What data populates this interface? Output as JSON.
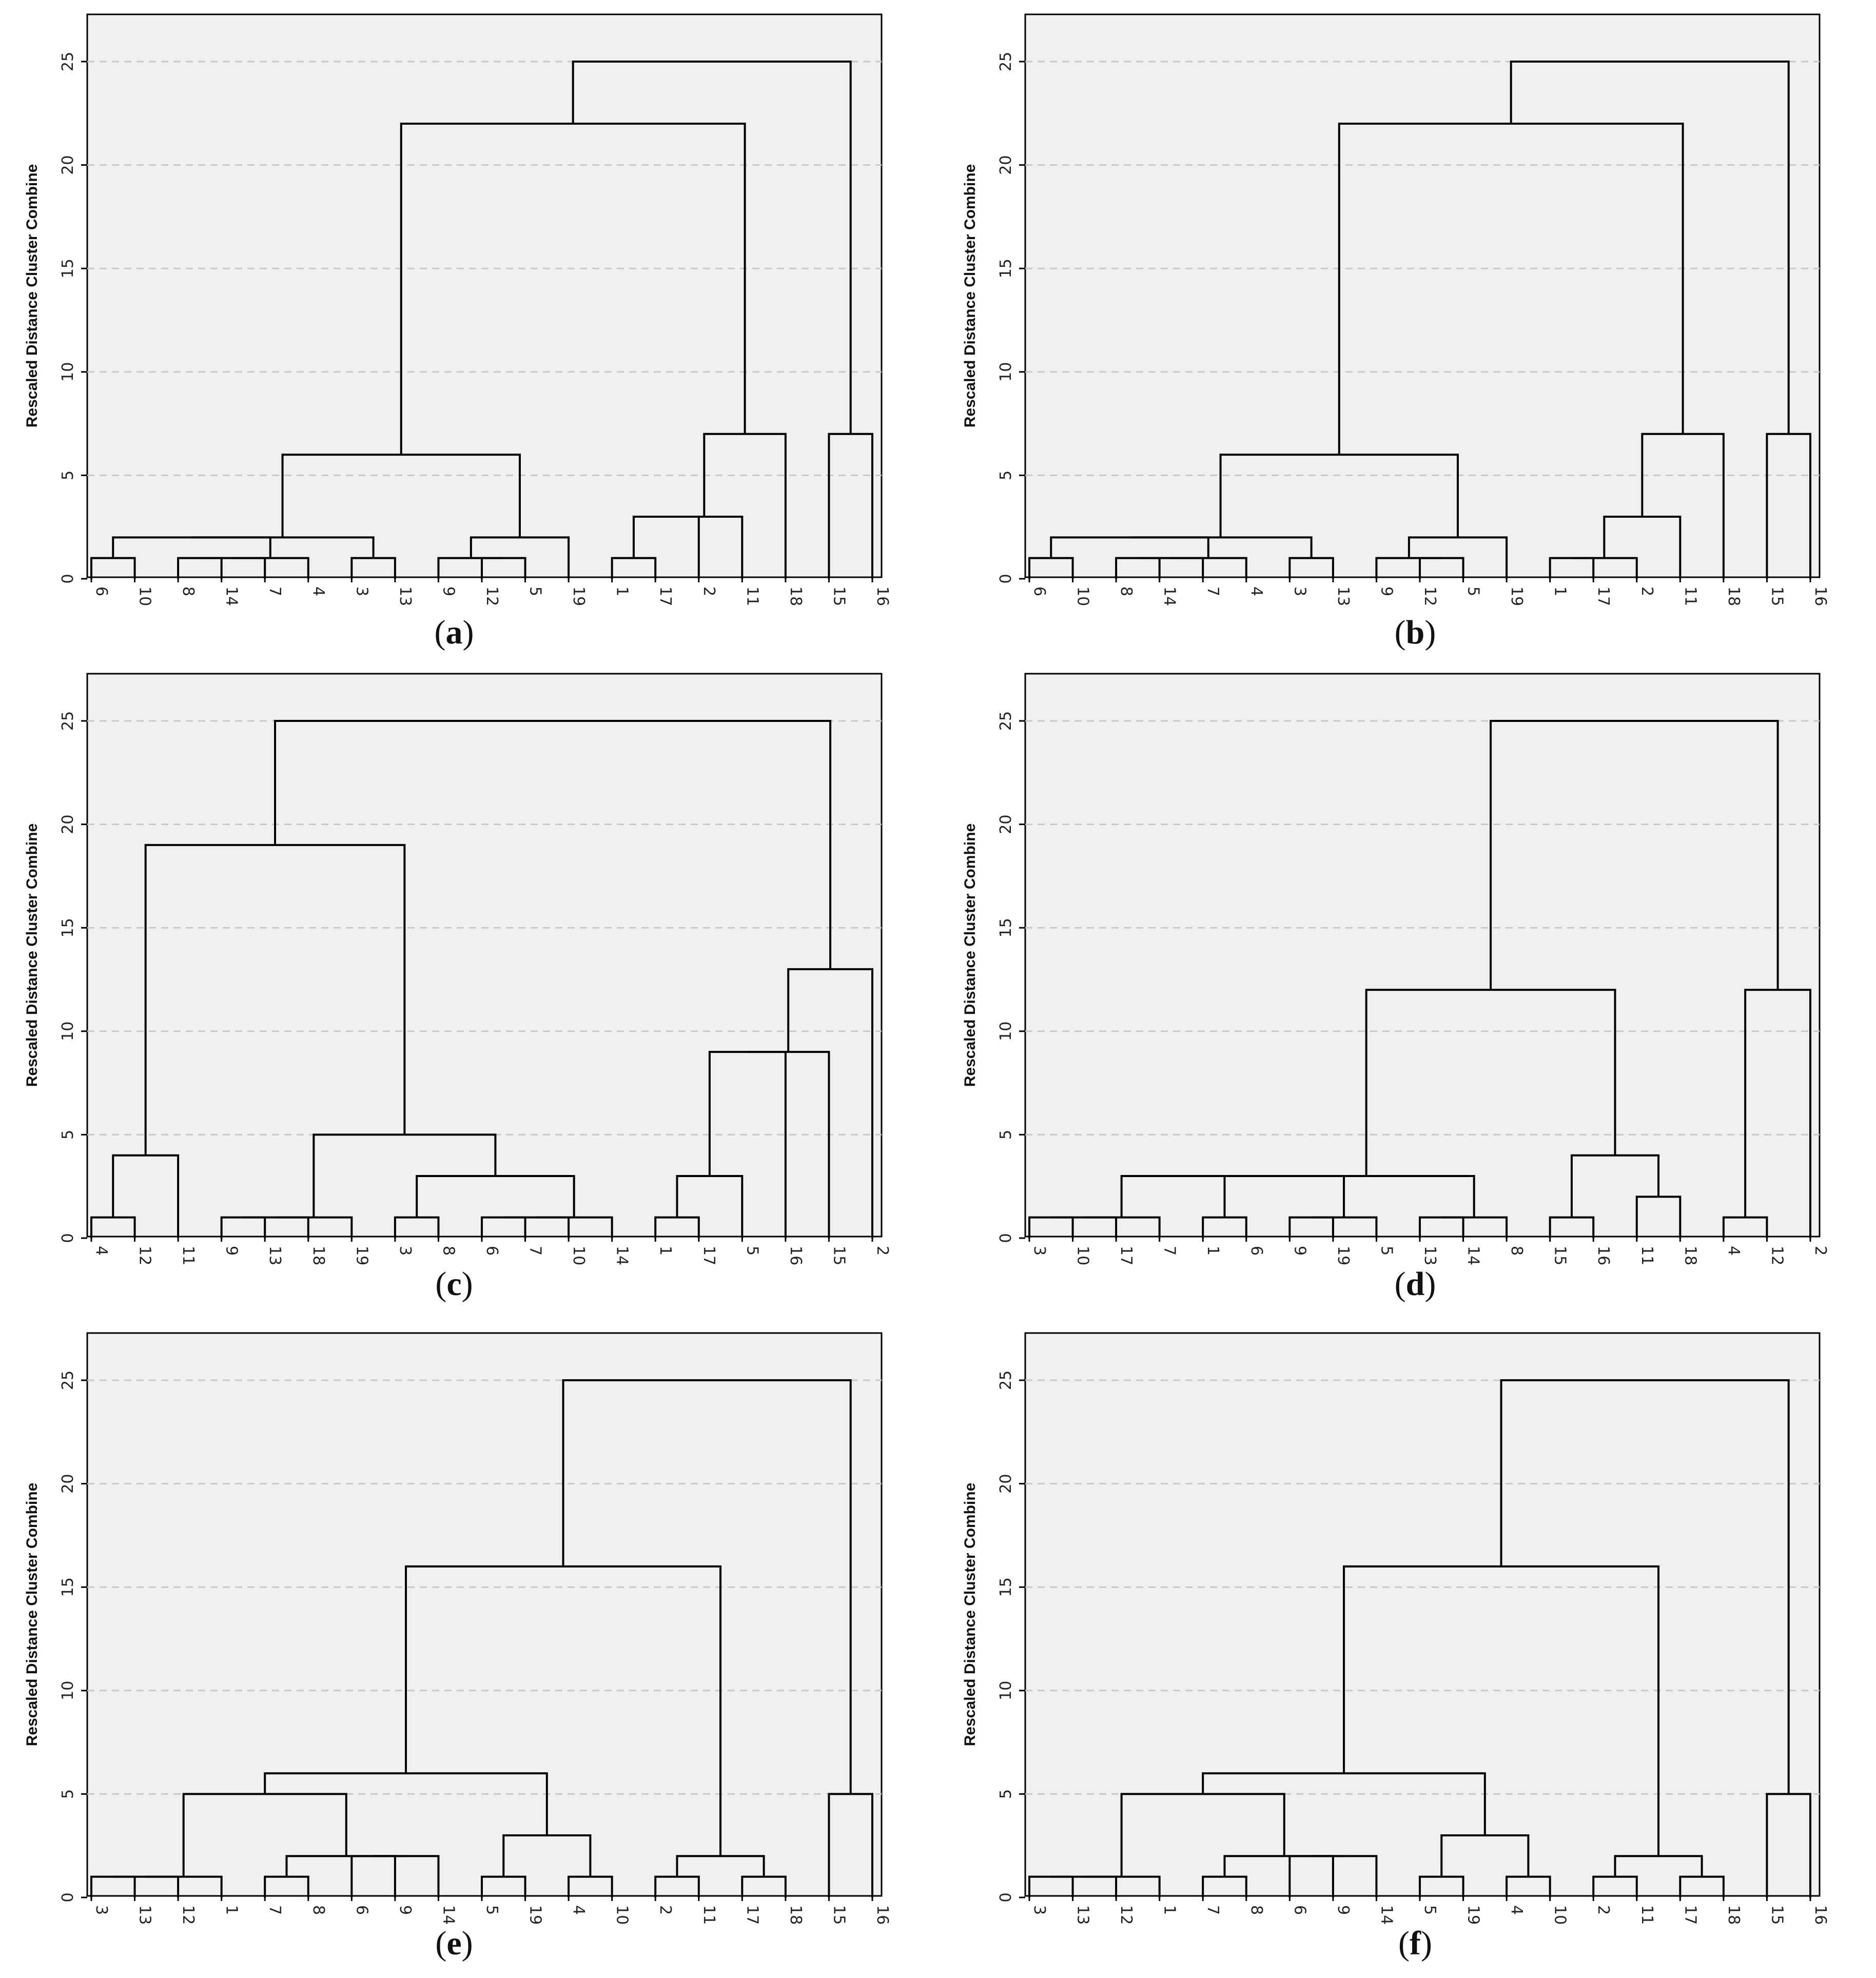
{
  "chart_data": [
    {
      "panel": "a",
      "type": "dendrogram",
      "ylabel": "Rescaled Distance Cluster Combine",
      "yticks": [
        0,
        5,
        10,
        15,
        20,
        25
      ],
      "ylim": [
        0,
        25
      ],
      "grid": "horizontal dashed",
      "leaves": [
        "6",
        "10",
        "8",
        "14",
        "7",
        "4",
        "3",
        "13",
        "9",
        "12",
        "5",
        "19",
        "1",
        "17",
        "2",
        "11",
        "18",
        "15",
        "16"
      ],
      "merges": [
        {
          "a": "L0",
          "b": "L1",
          "h": 1
        },
        {
          "a": "L2",
          "b": "L3",
          "h": 1
        },
        {
          "a": "n1",
          "b": "L4",
          "h": 1
        },
        {
          "a": "n2",
          "b": "L5",
          "h": 1
        },
        {
          "a": "L6",
          "b": "L7",
          "h": 1
        },
        {
          "a": "n0",
          "b": "n3",
          "h": 2
        },
        {
          "a": "n5",
          "b": "n4",
          "h": 2
        },
        {
          "a": "L9",
          "b": "L10",
          "h": 1
        },
        {
          "a": "L8",
          "b": "n7",
          "h": 1
        },
        {
          "a": "n8",
          "b": "L11",
          "h": 2
        },
        {
          "a": "n6",
          "b": "n9",
          "h": 6
        },
        {
          "a": "L12",
          "b": "L13",
          "h": 1
        },
        {
          "a": "n11",
          "b": "L14",
          "h": 3
        },
        {
          "a": "n12",
          "b": "L15",
          "h": 3
        },
        {
          "a": "n13",
          "b": "L16",
          "h": 7
        },
        {
          "a": "n10",
          "b": "n14",
          "h": 22
        },
        {
          "a": "L17",
          "b": "L18",
          "h": 7
        },
        {
          "a": "n15",
          "b": "n16",
          "h": 25
        }
      ]
    },
    {
      "panel": "b",
      "type": "dendrogram",
      "ylabel": "Rescaled Distance Cluster Combine",
      "yticks": [
        0,
        5,
        10,
        15,
        20,
        25
      ],
      "ylim": [
        0,
        25
      ],
      "grid": "horizontal dashed",
      "leaves": [
        "6",
        "10",
        "8",
        "14",
        "7",
        "4",
        "3",
        "13",
        "9",
        "12",
        "5",
        "19",
        "1",
        "17",
        "2",
        "11",
        "18",
        "15",
        "16"
      ],
      "merges": [
        {
          "a": "L0",
          "b": "L1",
          "h": 1
        },
        {
          "a": "L2",
          "b": "L3",
          "h": 1
        },
        {
          "a": "n1",
          "b": "L4",
          "h": 1
        },
        {
          "a": "n2",
          "b": "L5",
          "h": 1
        },
        {
          "a": "n0",
          "b": "n3",
          "h": 2
        },
        {
          "a": "L6",
          "b": "L7",
          "h": 1
        },
        {
          "a": "n4",
          "b": "n5",
          "h": 2
        },
        {
          "a": "L9",
          "b": "L10",
          "h": 1
        },
        {
          "a": "L8",
          "b": "n7",
          "h": 1
        },
        {
          "a": "n8",
          "b": "L11",
          "h": 2
        },
        {
          "a": "n6",
          "b": "n9",
          "h": 6
        },
        {
          "a": "L12",
          "b": "L13",
          "h": 1
        },
        {
          "a": "n11",
          "b": "L14",
          "h": 1
        },
        {
          "a": "n12",
          "b": "L15",
          "h": 3
        },
        {
          "a": "n13",
          "b": "L16",
          "h": 7
        },
        {
          "a": "n10",
          "b": "n14",
          "h": 22
        },
        {
          "a": "L17",
          "b": "L18",
          "h": 7
        },
        {
          "a": "n15",
          "b": "n16",
          "h": 25
        }
      ]
    },
    {
      "panel": "c",
      "type": "dendrogram",
      "ylabel": "Rescaled Distance Cluster Combine",
      "yticks": [
        0,
        5,
        10,
        15,
        20,
        25
      ],
      "ylim": [
        0,
        25
      ],
      "grid": "horizontal dashed",
      "leaves": [
        "4",
        "12",
        "11",
        "9",
        "13",
        "18",
        "19",
        "3",
        "8",
        "6",
        "7",
        "10",
        "14",
        "1",
        "17",
        "5",
        "16",
        "15",
        "2"
      ],
      "merges": [
        {
          "a": "L0",
          "b": "L1",
          "h": 1
        },
        {
          "a": "n0",
          "b": "L2",
          "h": 4
        },
        {
          "a": "L3",
          "b": "L4",
          "h": 1
        },
        {
          "a": "n2",
          "b": "L5",
          "h": 1
        },
        {
          "a": "n3",
          "b": "L6",
          "h": 1
        },
        {
          "a": "L7",
          "b": "L8",
          "h": 1
        },
        {
          "a": "L9",
          "b": "L10",
          "h": 1
        },
        {
          "a": "n6",
          "b": "L11",
          "h": 1
        },
        {
          "a": "n7",
          "b": "L12",
          "h": 1
        },
        {
          "a": "n5",
          "b": "n8",
          "h": 3
        },
        {
          "a": "n4",
          "b": "n9",
          "h": 5
        },
        {
          "a": "n1",
          "b": "n10",
          "h": 19
        },
        {
          "a": "L13",
          "b": "L14",
          "h": 1
        },
        {
          "a": "n12",
          "b": "L15",
          "h": 3
        },
        {
          "a": "n13",
          "b": "L16",
          "h": 9
        },
        {
          "a": "n14",
          "b": "L17",
          "h": 9
        },
        {
          "a": "n15",
          "b": "L18",
          "h": 13
        },
        {
          "a": "n11",
          "b": "n16",
          "h": 25
        }
      ]
    },
    {
      "panel": "d",
      "type": "dendrogram",
      "ylabel": "Rescaled Distance Cluster Combine",
      "yticks": [
        0,
        5,
        10,
        15,
        20,
        25
      ],
      "ylim": [
        0,
        25
      ],
      "grid": "horizontal dashed",
      "leaves": [
        "3",
        "10",
        "17",
        "7",
        "1",
        "6",
        "9",
        "19",
        "5",
        "13",
        "14",
        "8",
        "15",
        "16",
        "11",
        "18",
        "4",
        "12",
        "2"
      ],
      "merges": [
        {
          "a": "L0",
          "b": "L1",
          "h": 1
        },
        {
          "a": "n0",
          "b": "L2",
          "h": 1
        },
        {
          "a": "n1",
          "b": "L3",
          "h": 1
        },
        {
          "a": "L4",
          "b": "L5",
          "h": 1
        },
        {
          "a": "L6",
          "b": "L7",
          "h": 1
        },
        {
          "a": "n4",
          "b": "L8",
          "h": 1
        },
        {
          "a": "L9",
          "b": "L10",
          "h": 1
        },
        {
          "a": "n6",
          "b": "L11",
          "h": 1
        },
        {
          "a": "n2",
          "b": "n3",
          "h": 3
        },
        {
          "a": "n8",
          "b": "n5",
          "h": 3
        },
        {
          "a": "n9",
          "b": "n7",
          "h": 3
        },
        {
          "a": "L12",
          "b": "L13",
          "h": 1
        },
        {
          "a": "L14",
          "b": "L15",
          "h": 2
        },
        {
          "a": "n11",
          "b": "n12",
          "h": 4
        },
        {
          "a": "n10",
          "b": "n13",
          "h": 12
        },
        {
          "a": "L16",
          "b": "L17",
          "h": 1
        },
        {
          "a": "n15",
          "b": "L18",
          "h": 12
        },
        {
          "a": "n14",
          "b": "n16",
          "h": 25
        }
      ]
    },
    {
      "panel": "e",
      "type": "dendrogram",
      "ylabel": "Rescaled Distance Cluster Combine",
      "yticks": [
        0,
        5,
        10,
        15,
        20,
        25
      ],
      "ylim": [
        0,
        25
      ],
      "grid": "horizontal dashed",
      "leaves": [
        "3",
        "13",
        "12",
        "1",
        "7",
        "8",
        "6",
        "9",
        "14",
        "5",
        "19",
        "4",
        "10",
        "2",
        "11",
        "17",
        "18",
        "15",
        "16"
      ],
      "merges": [
        {
          "a": "L0",
          "b": "L1",
          "h": 1
        },
        {
          "a": "n0",
          "b": "L2",
          "h": 1
        },
        {
          "a": "n1",
          "b": "L3",
          "h": 1
        },
        {
          "a": "L4",
          "b": "L5",
          "h": 1
        },
        {
          "a": "L6",
          "b": "L7",
          "h": 2
        },
        {
          "a": "n4",
          "b": "L8",
          "h": 2
        },
        {
          "a": "n3",
          "b": "n5",
          "h": 2
        },
        {
          "a": "n2",
          "b": "n6",
          "h": 5
        },
        {
          "a": "L9",
          "b": "L10",
          "h": 1
        },
        {
          "a": "L11",
          "b": "L12",
          "h": 1
        },
        {
          "a": "n8",
          "b": "n9",
          "h": 3
        },
        {
          "a": "n7",
          "b": "n10",
          "h": 6
        },
        {
          "a": "L13",
          "b": "L14",
          "h": 1
        },
        {
          "a": "L15",
          "b": "L16",
          "h": 1
        },
        {
          "a": "n12",
          "b": "n13",
          "h": 2
        },
        {
          "a": "n11",
          "b": "n14",
          "h": 16
        },
        {
          "a": "L17",
          "b": "L18",
          "h": 5
        },
        {
          "a": "n15",
          "b": "n16",
          "h": 25
        }
      ]
    },
    {
      "panel": "f",
      "type": "dendrogram",
      "ylabel": "Rescaled Distance Cluster Combine",
      "yticks": [
        0,
        5,
        10,
        15,
        20,
        25
      ],
      "ylim": [
        0,
        25
      ],
      "grid": "horizontal dashed",
      "leaves": [
        "3",
        "13",
        "12",
        "1",
        "7",
        "8",
        "6",
        "9",
        "14",
        "5",
        "19",
        "4",
        "10",
        "2",
        "11",
        "17",
        "18",
        "15",
        "16"
      ],
      "merges": [
        {
          "a": "L0",
          "b": "L1",
          "h": 1
        },
        {
          "a": "n0",
          "b": "L2",
          "h": 1
        },
        {
          "a": "n1",
          "b": "L3",
          "h": 1
        },
        {
          "a": "L4",
          "b": "L5",
          "h": 1
        },
        {
          "a": "L6",
          "b": "L7",
          "h": 2
        },
        {
          "a": "n4",
          "b": "L8",
          "h": 2
        },
        {
          "a": "n3",
          "b": "n5",
          "h": 2
        },
        {
          "a": "n2",
          "b": "n6",
          "h": 5
        },
        {
          "a": "L9",
          "b": "L10",
          "h": 1
        },
        {
          "a": "L11",
          "b": "L12",
          "h": 1
        },
        {
          "a": "n8",
          "b": "n9",
          "h": 3
        },
        {
          "a": "n7",
          "b": "n10",
          "h": 6
        },
        {
          "a": "L13",
          "b": "L14",
          "h": 1
        },
        {
          "a": "L15",
          "b": "L16",
          "h": 1
        },
        {
          "a": "n12",
          "b": "n13",
          "h": 2
        },
        {
          "a": "n11",
          "b": "n14",
          "h": 16
        },
        {
          "a": "L17",
          "b": "L18",
          "h": 5
        },
        {
          "a": "n15",
          "b": "n16",
          "h": 25
        }
      ]
    }
  ],
  "captions": [
    "(a)",
    "(b)",
    "(c)",
    "(d)",
    "(e)",
    "(f)"
  ],
  "caption_letters": [
    "a",
    "b",
    "c",
    "d",
    "e",
    "f"
  ]
}
